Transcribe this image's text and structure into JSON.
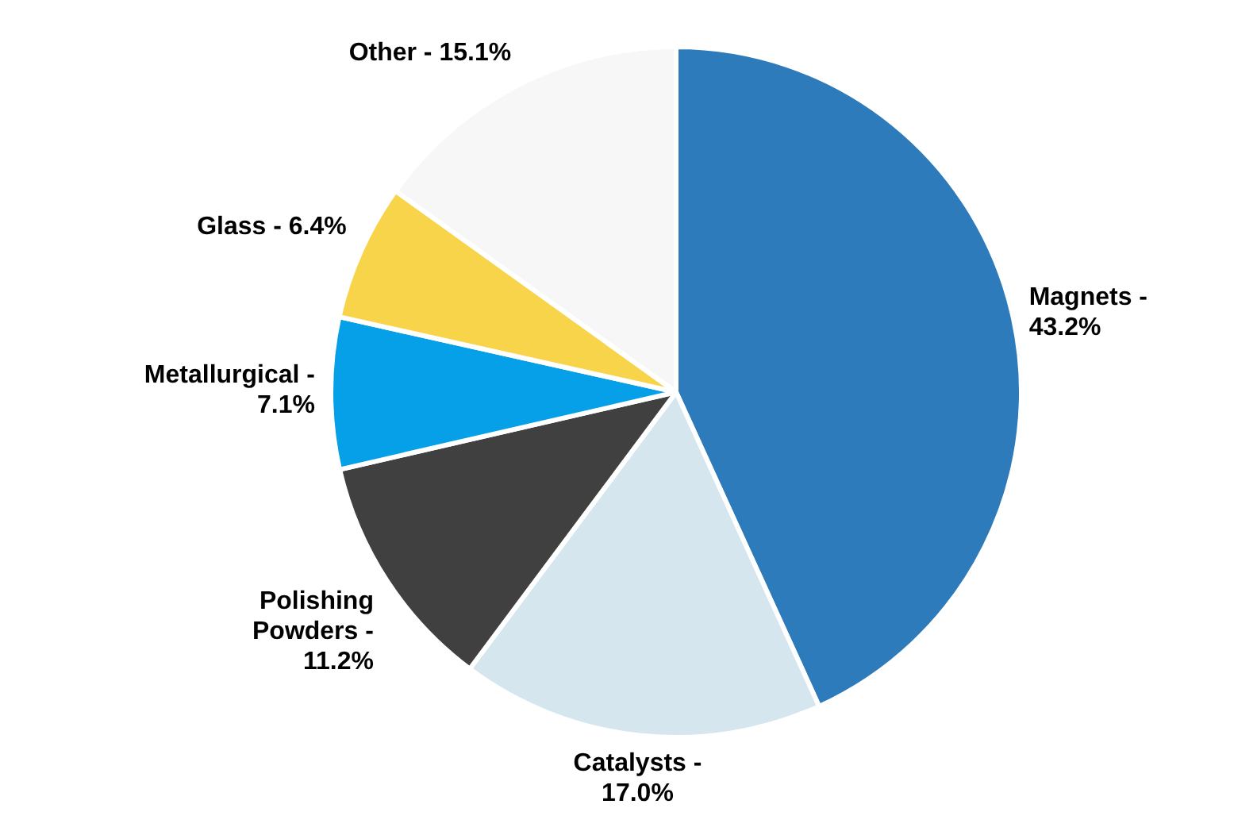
{
  "chart_data": {
    "type": "pie",
    "categories": [
      "Magnets -",
      "Catalysts -",
      "Polishing Powders -",
      "Metallurgical -",
      "Glass -",
      "Other -"
    ],
    "values": [
      43.2,
      17.0,
      11.2,
      7.1,
      6.4,
      15.1
    ],
    "value_labels": [
      "43.2%",
      "17.0%",
      "11.2%",
      "7.1%",
      "6.4%",
      "15.1%"
    ],
    "colors": [
      "#2e7bbb",
      "#d6e6ee",
      "#404040",
      "#05a0e8",
      "#f8d44a",
      "#f7f7f7"
    ],
    "legend": false
  }
}
